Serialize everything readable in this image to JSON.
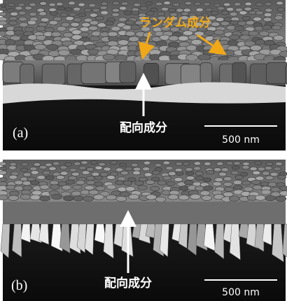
{
  "panels": [
    {
      "label": "(a)",
      "annotations": {
        "random": "ランダム成分",
        "oriented": "配向成分"
      },
      "scale_bar": "500 nm"
    },
    {
      "label": "(b)",
      "annotations": {
        "oriented": "配向成分"
      },
      "scale_bar": "500 nm"
    }
  ]
}
